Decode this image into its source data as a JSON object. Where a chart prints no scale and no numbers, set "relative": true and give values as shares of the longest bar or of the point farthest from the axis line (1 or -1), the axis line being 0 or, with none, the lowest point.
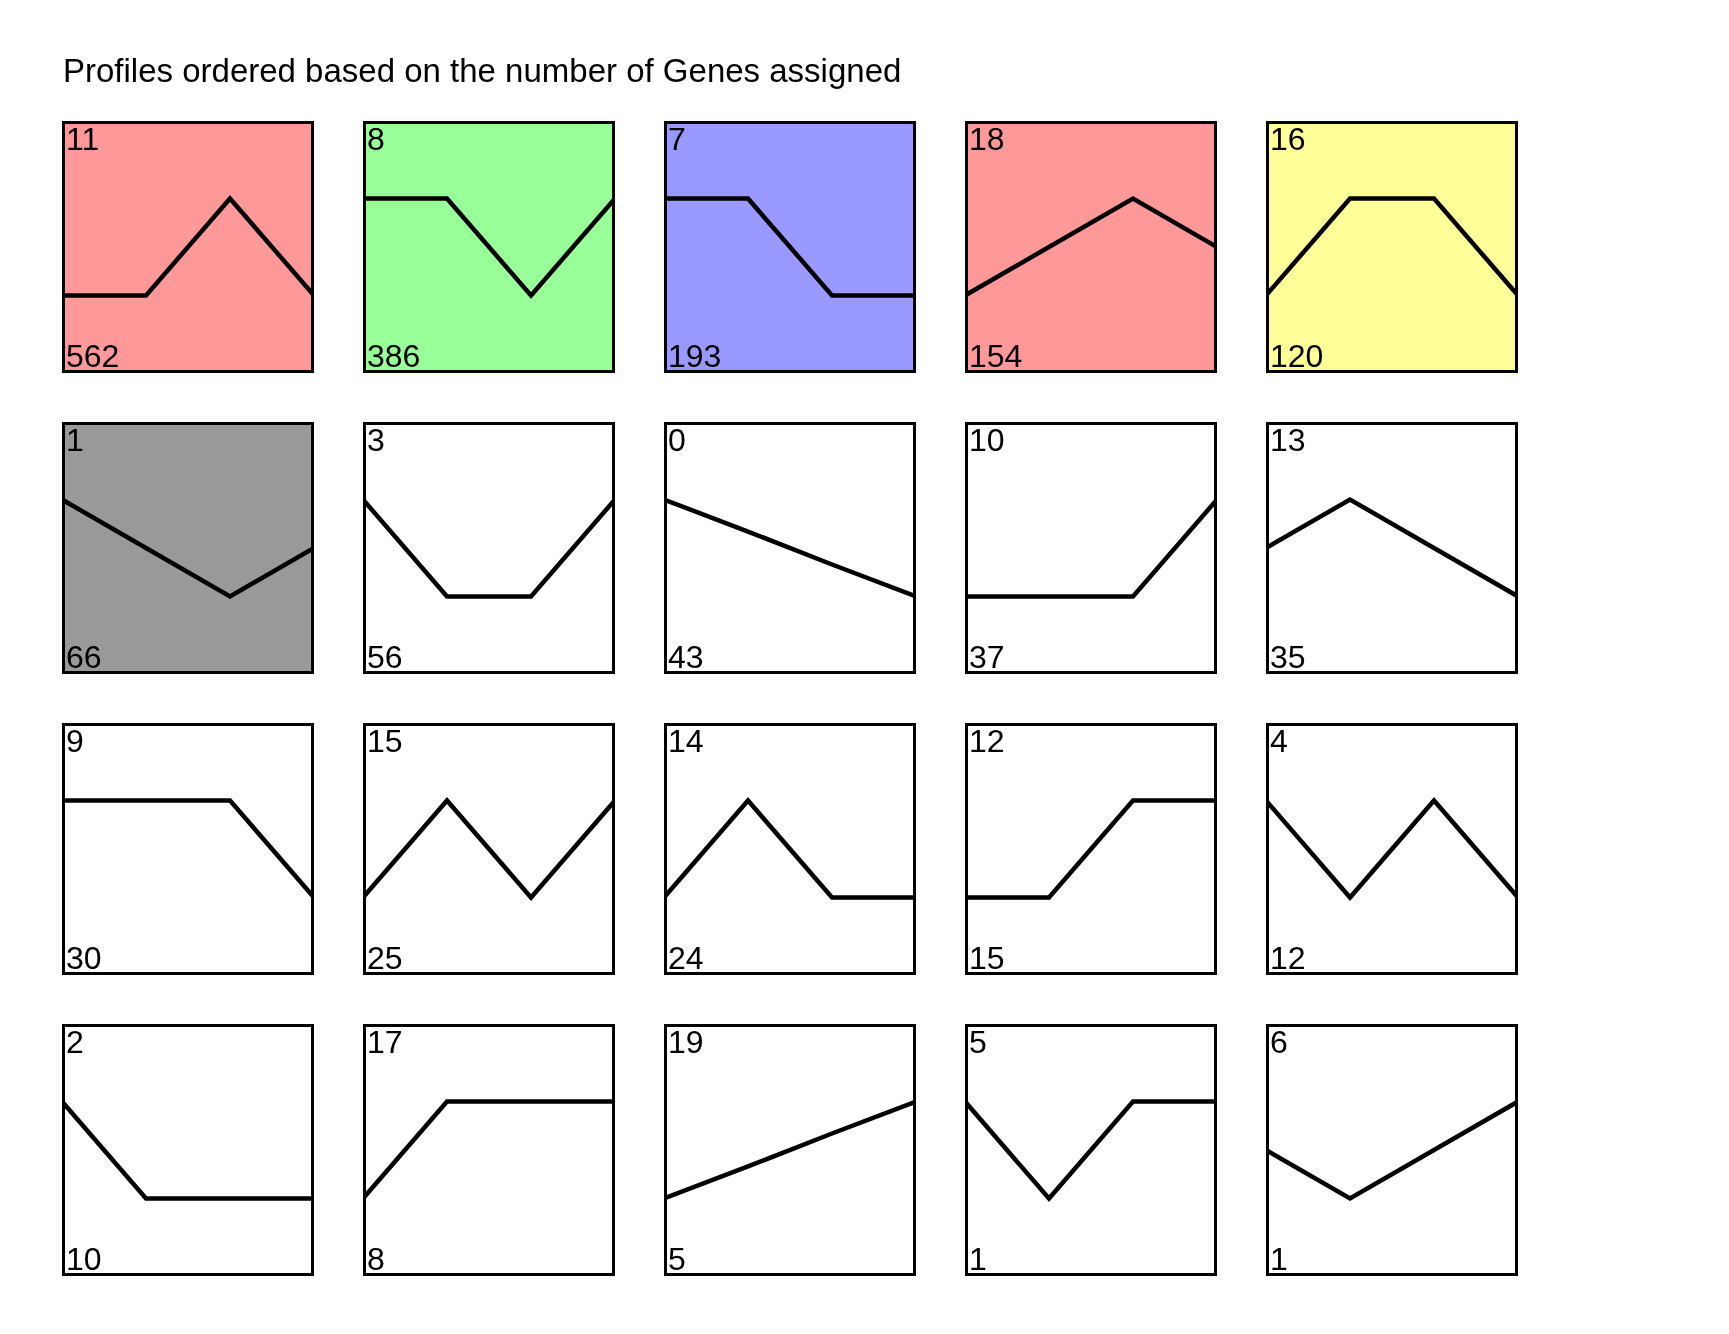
{
  "chart_data": [
    {
      "type": "line",
      "title": "Profiles ordered based on the number of Genes assigned",
      "relative": true,
      "categories": [
        null,
        null,
        null,
        null
      ],
      "values": [
        0,
        0,
        1,
        0
      ],
      "color": "#000000",
      "annotations": [
        "11",
        "562"
      ],
      "bands": [
        {
          "axis": "y",
          "from": -0.8,
          "to": 1.8,
          "color": "#ff9999"
        }
      ]
    },
    {
      "type": "line",
      "relative": true,
      "categories": [
        null,
        null,
        null,
        null
      ],
      "values": [
        1,
        1,
        0,
        1
      ],
      "color": "#000000",
      "annotations": [
        "8",
        "386"
      ],
      "bands": [
        {
          "axis": "y",
          "from": -0.8,
          "to": 1.8,
          "color": "#99ff99"
        }
      ]
    },
    {
      "type": "line",
      "relative": true,
      "categories": [
        null,
        null,
        null,
        null
      ],
      "values": [
        1,
        1,
        0,
        0
      ],
      "color": "#000000",
      "annotations": [
        "7",
        "193"
      ],
      "bands": [
        {
          "axis": "y",
          "from": -0.8,
          "to": 1.8,
          "color": "#9999ff"
        }
      ]
    },
    {
      "type": "line",
      "relative": true,
      "categories": [
        null,
        null,
        null,
        null
      ],
      "values": [
        0,
        0.5,
        1,
        0.5
      ],
      "color": "#000000",
      "annotations": [
        "18",
        "154"
      ],
      "bands": [
        {
          "axis": "y",
          "from": -0.8,
          "to": 1.8,
          "color": "#ff9999"
        }
      ]
    },
    {
      "type": "line",
      "relative": true,
      "categories": [
        null,
        null,
        null,
        null
      ],
      "values": [
        0,
        1,
        1,
        0
      ],
      "color": "#000000",
      "annotations": [
        "16",
        "120"
      ],
      "bands": [
        {
          "axis": "y",
          "from": -0.8,
          "to": 1.8,
          "color": "#ffff99"
        }
      ]
    },
    {
      "type": "line",
      "relative": true,
      "categories": [
        null,
        null,
        null,
        null
      ],
      "values": [
        1,
        0.5,
        0,
        0.5
      ],
      "color": "#000000",
      "annotations": [
        "1",
        "66"
      ],
      "bands": [
        {
          "axis": "y",
          "from": -0.8,
          "to": 1.8,
          "color": "#999999"
        }
      ]
    },
    {
      "type": "line",
      "relative": true,
      "categories": [
        null,
        null,
        null,
        null
      ],
      "values": [
        1,
        0,
        0,
        1
      ],
      "color": "#000000",
      "annotations": [
        "3",
        "56"
      ]
    },
    {
      "type": "line",
      "relative": true,
      "categories": [
        null,
        null,
        null,
        null
      ],
      "values": [
        1,
        0.67,
        0.33,
        0
      ],
      "color": "#000000",
      "annotations": [
        "0",
        "43"
      ]
    },
    {
      "type": "line",
      "relative": true,
      "categories": [
        null,
        null,
        null,
        null
      ],
      "values": [
        0,
        0,
        0,
        1
      ],
      "color": "#000000",
      "annotations": [
        "10",
        "37"
      ]
    },
    {
      "type": "line",
      "relative": true,
      "categories": [
        null,
        null,
        null,
        null
      ],
      "values": [
        0.5,
        1,
        0.5,
        0
      ],
      "color": "#000000",
      "annotations": [
        "13",
        "35"
      ]
    },
    {
      "type": "line",
      "relative": true,
      "categories": [
        null,
        null,
        null,
        null
      ],
      "values": [
        1,
        1,
        1,
        0
      ],
      "color": "#000000",
      "annotations": [
        "9",
        "30"
      ]
    },
    {
      "type": "line",
      "relative": true,
      "categories": [
        null,
        null,
        null,
        null
      ],
      "values": [
        0,
        1,
        0,
        1
      ],
      "color": "#000000",
      "annotations": [
        "15",
        "25"
      ]
    },
    {
      "type": "line",
      "relative": true,
      "categories": [
        null,
        null,
        null,
        null
      ],
      "values": [
        0,
        1,
        0,
        0
      ],
      "color": "#000000",
      "annotations": [
        "14",
        "24"
      ]
    },
    {
      "type": "line",
      "relative": true,
      "categories": [
        null,
        null,
        null,
        null
      ],
      "values": [
        0,
        0,
        1,
        1
      ],
      "color": "#000000",
      "annotations": [
        "12",
        "15"
      ]
    },
    {
      "type": "line",
      "relative": true,
      "categories": [
        null,
        null,
        null,
        null
      ],
      "values": [
        1,
        0,
        1,
        0
      ],
      "color": "#000000",
      "annotations": [
        "4",
        "12"
      ]
    },
    {
      "type": "line",
      "relative": true,
      "categories": [
        null,
        null,
        null,
        null
      ],
      "values": [
        1,
        0,
        0,
        0
      ],
      "color": "#000000",
      "annotations": [
        "2",
        "10"
      ]
    },
    {
      "type": "line",
      "relative": true,
      "categories": [
        null,
        null,
        null,
        null
      ],
      "values": [
        0,
        1,
        1,
        1
      ],
      "color": "#000000",
      "annotations": [
        "17",
        "8"
      ]
    },
    {
      "type": "line",
      "relative": true,
      "categories": [
        null,
        null,
        null,
        null
      ],
      "values": [
        0,
        0.33,
        0.67,
        1
      ],
      "color": "#000000",
      "annotations": [
        "19",
        "5"
      ]
    },
    {
      "type": "line",
      "relative": true,
      "categories": [
        null,
        null,
        null,
        null
      ],
      "values": [
        1,
        0,
        1,
        1
      ],
      "color": "#000000",
      "annotations": [
        "5",
        "1"
      ]
    },
    {
      "type": "line",
      "relative": true,
      "categories": [
        null,
        null,
        null,
        null
      ],
      "values": [
        0.5,
        0,
        0.5,
        1
      ],
      "color": "#000000",
      "annotations": [
        "6",
        "1"
      ]
    }
  ]
}
